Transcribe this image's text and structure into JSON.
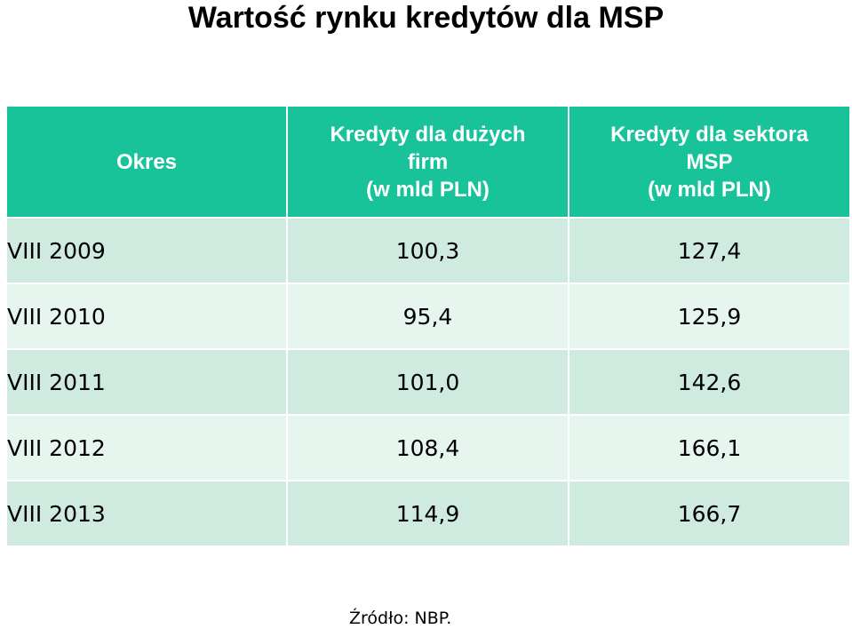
{
  "title": "Wartość rynku kredytów dla MSP",
  "table": {
    "headers": [
      [
        "Okres"
      ],
      [
        "Kredyty dla dużych",
        "firm",
        "(w mld PLN)"
      ],
      [
        "Kredyty dla sektora",
        "MSP",
        "(w mld PLN)"
      ]
    ],
    "rows": [
      [
        "VIII 2009",
        "100,3",
        "127,4"
      ],
      [
        "VIII 2010",
        "95,4",
        "125,9"
      ],
      [
        "VIII 2011",
        "101,0",
        "142,6"
      ],
      [
        "VIII 2012",
        "108,4",
        "166,1"
      ],
      [
        "VIII 2013",
        "114,9",
        "166,7"
      ]
    ]
  },
  "source": "Źródło: NBP.",
  "colors": {
    "header_bg": "#19c39a",
    "row_dark": "#cfeadf",
    "row_light": "#e7f5ef"
  }
}
